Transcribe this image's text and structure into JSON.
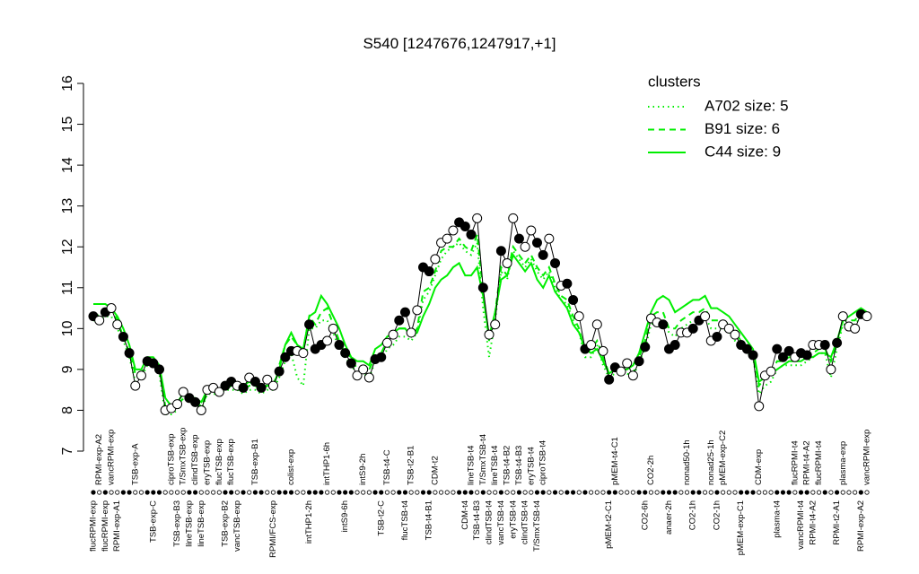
{
  "chart_data": {
    "type": "line",
    "title": "S540 [1247676,1247917,+1]",
    "ylim": [
      7,
      16
    ],
    "yticks": [
      7,
      8,
      9,
      10,
      11,
      12,
      13,
      14,
      15,
      16
    ],
    "color": "#000000",
    "categories": [
      "flucRPMI-exp",
      "RPMI-exp-A2",
      "flucRPMI-exp",
      "vancRPMI-exp",
      "RPMI-exp-A1",
      null,
      null,
      "TSB-exp-A",
      null,
      null,
      "TSB-exp-C",
      null,
      null,
      "ciproTSB-exp",
      "TSB-exp-B3",
      "T/SmxTSB-exp",
      "lineTSB-exp",
      "clindTSB-exp",
      "lineTSB-exp",
      "eryTSB-exp",
      null,
      "flucTSB-exp",
      "TSB-exp-B2",
      "flucTSB-exp",
      "vancTSB-exp",
      null,
      null,
      "TSB-exp-B1",
      null,
      null,
      "RPMI/FCS-exp",
      null,
      null,
      "colist-exp",
      null,
      null,
      "intTHP1-2h",
      null,
      null,
      "intTHP1-6h",
      null,
      null,
      "intS9-6h",
      null,
      null,
      "intS9-2h",
      null,
      null,
      "TSB-t2-C",
      "TSB-t4-C",
      null,
      null,
      "flucTSB-t4",
      "TSB-t2-B1",
      null,
      null,
      "TSB-t4-B1",
      "CDM-t2",
      null,
      null,
      null,
      null,
      "CDM-t4",
      "lineTSB-t4",
      "TSB-t4-B3",
      "T/SmxTSB-t4",
      "clindTSB-t4",
      "lineTSB-t4",
      "vancTSB-t4",
      "TSB-t4-B2",
      "eryTSB-t4",
      "TSB-t4-B3",
      "clindTSB-t4",
      "eryTSB-t4",
      "T/SmxTSB-t4",
      "ciproTSB-t4",
      null,
      null,
      null,
      null,
      null,
      null,
      null,
      null,
      null,
      null,
      "pMEM-t2-C1",
      "pMEM-t4-C1",
      null,
      null,
      null,
      null,
      "CO2-6h",
      "CO2-2h",
      null,
      null,
      "anaer-2h",
      null,
      null,
      "nonad50-1h",
      "CO2-1h",
      null,
      null,
      "nonad25-1h",
      "CO2-1h",
      "pMEM-exp-C2",
      null,
      null,
      "pMEM-exp-C1",
      null,
      null,
      "CDM-exp",
      null,
      null,
      "plasma-t4",
      null,
      null,
      "flucRPMI-t4",
      "vancRPMI-t4",
      "RPMI-t4-A2",
      "RPMI-t4-A2",
      "flucRPMI-t4",
      null,
      null,
      "RPMI-t2-A1",
      "plasma-exp",
      null,
      null,
      "RPMI-exp-A2",
      "vancRPMI-exp"
    ],
    "values": [
      10.3,
      10.2,
      10.4,
      10.5,
      10.1,
      9.8,
      9.4,
      8.6,
      8.85,
      9.2,
      9.15,
      9.0,
      8.0,
      8.05,
      8.15,
      8.45,
      8.3,
      8.2,
      8.0,
      8.5,
      8.55,
      8.45,
      8.6,
      8.7,
      8.6,
      8.55,
      8.8,
      8.7,
      8.55,
      8.75,
      8.6,
      8.95,
      9.3,
      9.45,
      9.45,
      9.4,
      10.1,
      9.5,
      9.6,
      9.7,
      10.0,
      9.6,
      9.4,
      9.15,
      8.85,
      9.0,
      8.8,
      9.25,
      9.3,
      9.65,
      9.85,
      10.2,
      10.4,
      9.9,
      10.45,
      11.5,
      11.4,
      11.7,
      12.1,
      12.2,
      12.4,
      12.6,
      12.5,
      12.3,
      12.7,
      11.0,
      9.85,
      10.1,
      11.9,
      11.6,
      12.7,
      12.2,
      12.0,
      12.4,
      12.1,
      11.8,
      12.2,
      11.6,
      11.05,
      11.1,
      10.7,
      10.3,
      9.5,
      9.6,
      10.1,
      9.45,
      8.75,
      9.05,
      8.95,
      9.15,
      8.85,
      9.2,
      9.55,
      10.25,
      10.15,
      10.1,
      9.5,
      9.6,
      9.9,
      9.9,
      10.0,
      10.2,
      10.3,
      9.7,
      9.8,
      10.1,
      10.0,
      9.85,
      9.6,
      9.5,
      9.35,
      8.1,
      8.85,
      8.95,
      9.5,
      9.3,
      9.45,
      9.3,
      9.4,
      9.35,
      9.6,
      9.6,
      9.6,
      9.0,
      9.65,
      10.3,
      10.05,
      10.0,
      10.35,
      10.3
    ],
    "filled": [
      true,
      false,
      true,
      false,
      false,
      true,
      true,
      false,
      false,
      true,
      true,
      true,
      false,
      false,
      false,
      false,
      true,
      true,
      false,
      false,
      false,
      false,
      true,
      true,
      false,
      true,
      false,
      true,
      true,
      false,
      false,
      true,
      true,
      true,
      false,
      false,
      true,
      true,
      true,
      false,
      false,
      true,
      true,
      true,
      false,
      false,
      false,
      true,
      true,
      false,
      false,
      true,
      true,
      false,
      false,
      true,
      true,
      false,
      false,
      false,
      false,
      true,
      true,
      true,
      false,
      true,
      false,
      false,
      true,
      false,
      false,
      true,
      false,
      false,
      true,
      true,
      false,
      true,
      false,
      true,
      true,
      false,
      true,
      false,
      false,
      false,
      true,
      true,
      false,
      false,
      false,
      true,
      true,
      false,
      false,
      true,
      true,
      true,
      false,
      false,
      true,
      true,
      false,
      false,
      true,
      false,
      false,
      false,
      true,
      true,
      true,
      false,
      false,
      false,
      true,
      true,
      true,
      false,
      true,
      true,
      false,
      false,
      true,
      false,
      true,
      false,
      false,
      false,
      true,
      false
    ],
    "legend_title": "clusters",
    "legend_position": "topright",
    "legend_color": "#00ee00",
    "series": [
      {
        "name": "A702 size: 5",
        "color": "#00ee00",
        "line_style": "dotted",
        "values": [
          10.2,
          10.2,
          10.3,
          10.3,
          10.0,
          9.7,
          9.3,
          8.7,
          8.8,
          9.1,
          9.1,
          8.9,
          7.9,
          7.9,
          8.0,
          8.3,
          8.2,
          8.2,
          8.0,
          8.4,
          8.4,
          8.4,
          8.5,
          8.5,
          8.5,
          8.4,
          8.5,
          8.5,
          8.4,
          8.5,
          8.5,
          8.8,
          9.2,
          9.4,
          8.8,
          8.6,
          10.0,
          10.0,
          10.2,
          10.2,
          9.9,
          9.5,
          9.3,
          9.1,
          8.9,
          8.9,
          8.8,
          9.2,
          9.2,
          9.5,
          9.6,
          9.8,
          9.8,
          9.7,
          9.9,
          10.7,
          10.9,
          11.3,
          11.7,
          11.9,
          12.0,
          12.1,
          11.9,
          11.8,
          12.1,
          10.5,
          9.3,
          10.2,
          11.4,
          11.2,
          11.9,
          11.7,
          11.5,
          11.7,
          11.4,
          11.2,
          11.4,
          11.0,
          10.7,
          10.6,
          10.2,
          9.9,
          9.3,
          9.3,
          9.6,
          9.1,
          8.8,
          8.9,
          8.9,
          8.9,
          8.8,
          9.2,
          9.5,
          10.1,
          10.2,
          10.2,
          9.9,
          9.8,
          10.0,
          10.1,
          10.2,
          10.2,
          10.3,
          10.0,
          10.0,
          10.0,
          9.9,
          9.7,
          9.5,
          9.4,
          9.3,
          8.4,
          8.6,
          8.7,
          9.0,
          9.1,
          9.1,
          9.1,
          9.1,
          9.2,
          9.3,
          9.4,
          9.4,
          8.8,
          9.5,
          10.1,
          10.1,
          10.1,
          10.3,
          10.3
        ]
      },
      {
        "name": "B91 size: 6",
        "color": "#00ee00",
        "line_style": "dashed",
        "values": [
          10.4,
          10.3,
          10.5,
          10.5,
          10.2,
          9.8,
          9.4,
          8.9,
          8.9,
          9.2,
          9.2,
          9.0,
          8.1,
          8.0,
          8.1,
          8.3,
          8.3,
          8.2,
          8.1,
          8.4,
          8.5,
          8.4,
          8.5,
          8.6,
          8.5,
          8.5,
          8.6,
          8.6,
          8.5,
          8.6,
          8.6,
          9.1,
          9.6,
          9.8,
          9.6,
          9.5,
          10.3,
          10.1,
          10.4,
          10.5,
          10.1,
          9.7,
          9.4,
          9.3,
          9.0,
          9.0,
          9.0,
          9.3,
          9.4,
          9.7,
          9.7,
          10.0,
          10.0,
          9.8,
          10.0,
          10.9,
          11.0,
          11.4,
          11.9,
          12.0,
          12.0,
          12.2,
          12.0,
          11.9,
          12.3,
          10.9,
          9.7,
          10.4,
          11.5,
          11.3,
          12.0,
          11.8,
          11.6,
          11.8,
          11.5,
          11.3,
          11.5,
          11.1,
          10.8,
          10.7,
          10.3,
          10.0,
          9.4,
          9.5,
          9.7,
          9.3,
          8.9,
          9.0,
          9.0,
          9.0,
          8.9,
          9.3,
          9.7,
          10.3,
          10.4,
          10.4,
          10.0,
          10.0,
          10.2,
          10.3,
          10.4,
          10.4,
          10.5,
          10.2,
          10.2,
          10.2,
          10.1,
          9.9,
          9.7,
          9.5,
          9.4,
          8.6,
          8.8,
          8.9,
          9.2,
          9.2,
          9.3,
          9.3,
          9.3,
          9.3,
          9.4,
          9.5,
          9.5,
          9.2,
          9.6,
          10.2,
          10.2,
          10.2,
          10.4,
          10.4
        ]
      },
      {
        "name": "C44 size: 9",
        "color": "#00ee00",
        "line_style": "solid",
        "values": [
          10.6,
          10.6,
          10.6,
          10.5,
          10.3,
          10.0,
          9.6,
          9.0,
          9.0,
          9.3,
          9.3,
          9.1,
          8.3,
          8.1,
          8.2,
          8.4,
          8.3,
          8.3,
          8.2,
          8.5,
          8.5,
          8.5,
          8.6,
          8.7,
          8.6,
          8.6,
          8.7,
          8.6,
          8.6,
          8.6,
          8.6,
          9.0,
          9.6,
          9.9,
          9.6,
          9.5,
          10.3,
          10.4,
          10.8,
          10.6,
          10.3,
          10.0,
          9.6,
          9.3,
          9.2,
          9.2,
          9.1,
          9.5,
          9.6,
          9.8,
          9.9,
          10.0,
          10.0,
          9.8,
          9.9,
          10.3,
          10.6,
          11.0,
          11.2,
          11.3,
          11.5,
          11.6,
          11.3,
          11.3,
          11.5,
          10.8,
          9.8,
          10.4,
          11.2,
          11.3,
          11.8,
          11.6,
          11.4,
          11.6,
          11.2,
          11.0,
          11.3,
          10.9,
          10.7,
          10.5,
          10.1,
          9.9,
          9.5,
          9.4,
          9.5,
          9.2,
          8.9,
          9.0,
          9.0,
          9.0,
          9.1,
          9.4,
          9.9,
          10.4,
          10.7,
          10.8,
          10.7,
          10.4,
          10.5,
          10.6,
          10.7,
          10.7,
          10.8,
          10.5,
          10.5,
          10.4,
          10.3,
          10.1,
          9.9,
          9.7,
          9.5,
          8.7,
          8.8,
          8.9,
          9.0,
          9.1,
          9.2,
          9.2,
          9.2,
          9.3,
          9.3,
          9.4,
          9.4,
          9.3,
          9.7,
          10.2,
          10.3,
          10.4,
          10.5,
          10.4
        ]
      }
    ]
  }
}
